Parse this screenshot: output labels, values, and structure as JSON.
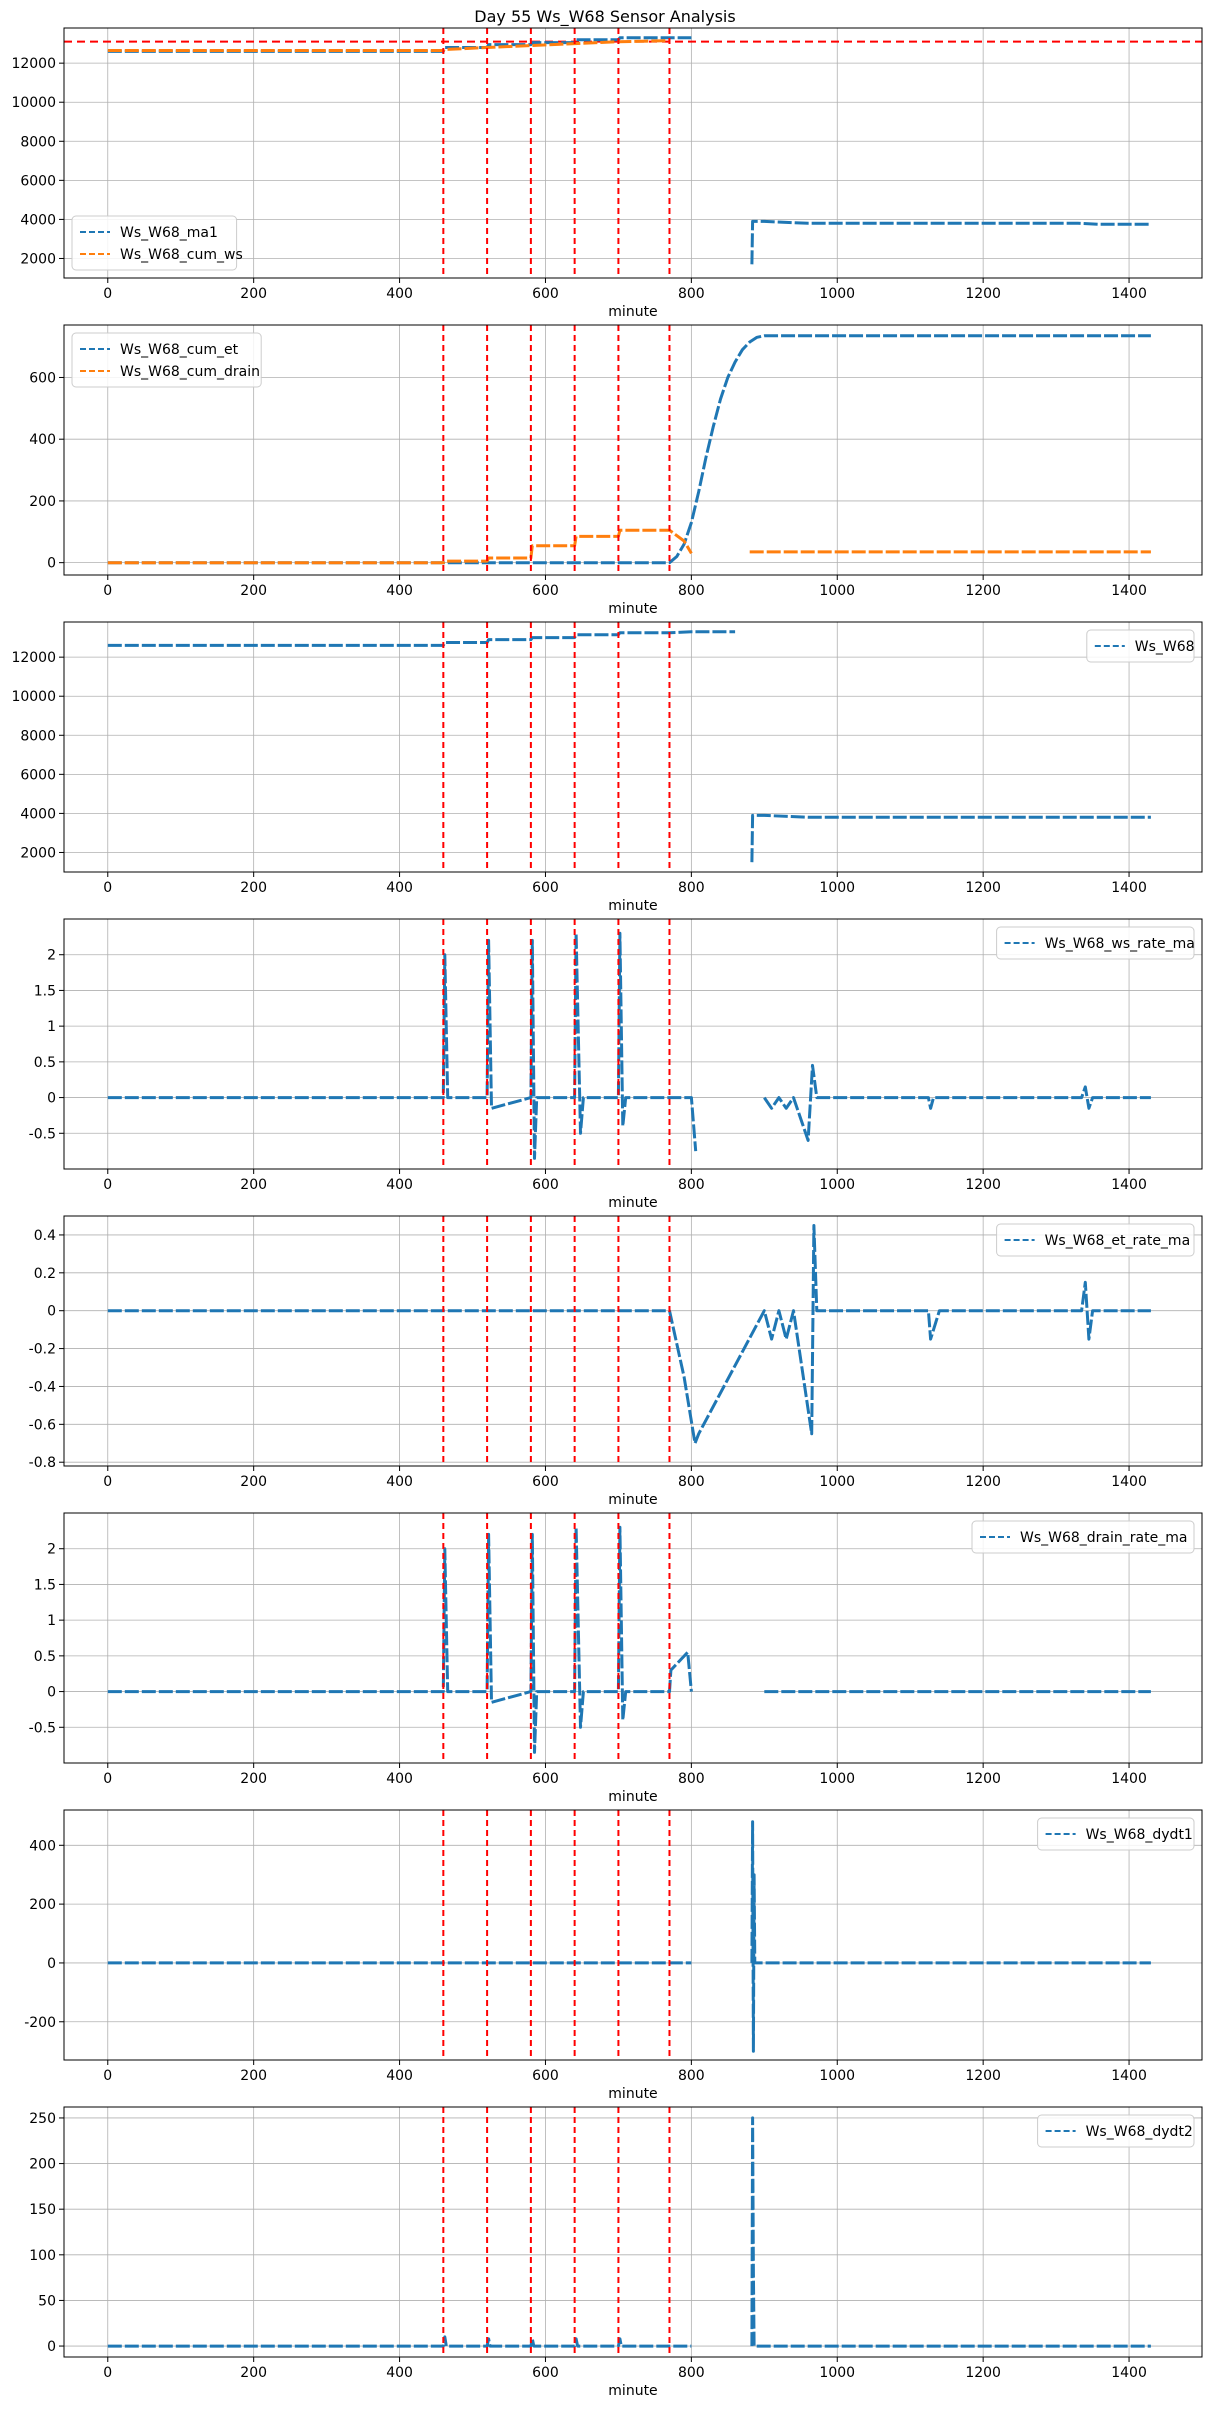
{
  "title": "Day 55 Ws_W68 Sensor Analysis",
  "colors": {
    "c0": "#1f77b4",
    "c1": "#ff7f0e",
    "event": "#ff0000",
    "grid": "#b0b0b0"
  },
  "chart_data": [
    {
      "type": "line",
      "xlabel": "minute",
      "xlim": [
        -60,
        1500
      ],
      "xticks": [
        0,
        200,
        400,
        600,
        800,
        1000,
        1200,
        1400
      ],
      "ylim": [
        1000,
        13800
      ],
      "yticks": [
        2000,
        4000,
        6000,
        8000,
        10000,
        12000
      ],
      "legend_loc": "lower-left",
      "event_lines": [
        460,
        520,
        580,
        640,
        700,
        770
      ],
      "hlines": [
        13100
      ],
      "series": [
        {
          "name": "Ws_W68_ma1",
          "color": "#1f77b4",
          "points": [
            [
              0,
              12600
            ],
            [
              460,
              12600
            ],
            [
              462,
              12800
            ],
            [
              520,
              12800
            ],
            [
              522,
              12950
            ],
            [
              580,
              12950
            ],
            [
              582,
              13050
            ],
            [
              640,
              13050
            ],
            [
              642,
              13200
            ],
            [
              700,
              13200
            ],
            [
              702,
              13300
            ],
            [
              770,
              13300
            ],
            [
              800,
              13300
            ],
            [
              null,
              null
            ],
            [
              883,
              1700
            ],
            [
              884,
              3900
            ],
            [
              900,
              3900
            ],
            [
              960,
              3800
            ],
            [
              1330,
              3800
            ],
            [
              1360,
              3750
            ],
            [
              1430,
              3750
            ]
          ]
        },
        {
          "name": "Ws_W68_cum_ws",
          "color": "#ff7f0e",
          "points": [
            [
              0,
              12650
            ],
            [
              460,
              12650
            ],
            [
              462,
              12700
            ],
            [
              520,
              12800
            ],
            [
              580,
              12900
            ],
            [
              640,
              13000
            ],
            [
              700,
              13100
            ],
            [
              770,
              13150
            ]
          ]
        }
      ]
    },
    {
      "type": "line",
      "xlabel": "minute",
      "xlim": [
        -60,
        1500
      ],
      "xticks": [
        0,
        200,
        400,
        600,
        800,
        1000,
        1200,
        1400
      ],
      "ylim": [
        -40,
        770
      ],
      "yticks": [
        0,
        200,
        400,
        600
      ],
      "legend_loc": "upper-left",
      "event_lines": [
        460,
        520,
        580,
        640,
        700,
        770
      ],
      "series": [
        {
          "name": "Ws_W68_cum_et",
          "color": "#1f77b4",
          "points": [
            [
              0,
              0
            ],
            [
              770,
              0
            ],
            [
              780,
              20
            ],
            [
              790,
              60
            ],
            [
              800,
              130
            ],
            [
              810,
              230
            ],
            [
              820,
              340
            ],
            [
              830,
              440
            ],
            [
              840,
              530
            ],
            [
              850,
              600
            ],
            [
              860,
              650
            ],
            [
              870,
              690
            ],
            [
              880,
              715
            ],
            [
              890,
              730
            ],
            [
              900,
              735
            ],
            [
              1430,
              735
            ]
          ]
        },
        {
          "name": "Ws_W68_cum_drain",
          "color": "#ff7f0e",
          "points": [
            [
              0,
              0
            ],
            [
              460,
              0
            ],
            [
              462,
              5
            ],
            [
              520,
              5
            ],
            [
              522,
              15
            ],
            [
              580,
              15
            ],
            [
              582,
              55
            ],
            [
              640,
              55
            ],
            [
              642,
              85
            ],
            [
              700,
              85
            ],
            [
              702,
              105
            ],
            [
              770,
              105
            ],
            [
              790,
              70
            ],
            [
              800,
              30
            ],
            [
              null,
              null
            ],
            [
              880,
              35
            ],
            [
              1430,
              35
            ]
          ]
        }
      ]
    },
    {
      "type": "line",
      "xlabel": "minute",
      "xlim": [
        -60,
        1500
      ],
      "xticks": [
        0,
        200,
        400,
        600,
        800,
        1000,
        1200,
        1400
      ],
      "ylim": [
        1000,
        13800
      ],
      "yticks": [
        2000,
        4000,
        6000,
        8000,
        10000,
        12000
      ],
      "legend_loc": "upper-right",
      "event_lines": [
        460,
        520,
        580,
        640,
        700,
        770
      ],
      "series": [
        {
          "name": "Ws_W68",
          "color": "#1f77b4",
          "points": [
            [
              0,
              12600
            ],
            [
              460,
              12600
            ],
            [
              462,
              12750
            ],
            [
              520,
              12750
            ],
            [
              522,
              12900
            ],
            [
              580,
              12900
            ],
            [
              582,
              13000
            ],
            [
              640,
              13000
            ],
            [
              642,
              13150
            ],
            [
              700,
              13150
            ],
            [
              702,
              13250
            ],
            [
              770,
              13250
            ],
            [
              800,
              13300
            ],
            [
              860,
              13300
            ],
            [
              null,
              null
            ],
            [
              883,
              1500
            ],
            [
              884,
              3900
            ],
            [
              900,
              3900
            ],
            [
              960,
              3800
            ],
            [
              1430,
              3800
            ]
          ]
        }
      ]
    },
    {
      "type": "line",
      "xlabel": "minute",
      "xlim": [
        -60,
        1500
      ],
      "xticks": [
        0,
        200,
        400,
        600,
        800,
        1000,
        1200,
        1400
      ],
      "ylim": [
        -1.0,
        2.5
      ],
      "yticks": [
        -0.5,
        0.0,
        0.5,
        1.0,
        1.5,
        2.0
      ],
      "legend_loc": "upper-right",
      "event_lines": [
        460,
        520,
        580,
        640,
        700,
        770
      ],
      "series": [
        {
          "name": "Ws_W68_ws_rate_ma",
          "color": "#1f77b4",
          "points": [
            [
              0,
              0
            ],
            [
              460,
              0
            ],
            [
              462,
              2.0
            ],
            [
              466,
              0
            ],
            [
              520,
              0
            ],
            [
              522,
              2.2
            ],
            [
              526,
              -0.15
            ],
            [
              580,
              0
            ],
            [
              582,
              2.2
            ],
            [
              585,
              -0.85
            ],
            [
              588,
              0
            ],
            [
              640,
              0
            ],
            [
              642,
              2.3
            ],
            [
              648,
              -0.5
            ],
            [
              652,
              0
            ],
            [
              700,
              0
            ],
            [
              702,
              2.3
            ],
            [
              706,
              -0.4
            ],
            [
              710,
              0
            ],
            [
              770,
              0
            ],
            [
              800,
              0
            ],
            [
              806,
              -0.75
            ],
            [
              null,
              null
            ],
            [
              900,
              0
            ],
            [
              910,
              -0.15
            ],
            [
              920,
              0
            ],
            [
              930,
              -0.15
            ],
            [
              940,
              0
            ],
            [
              960,
              -0.6
            ],
            [
              966,
              0.45
            ],
            [
              972,
              0
            ],
            [
              1125,
              0
            ],
            [
              1128,
              -0.15
            ],
            [
              1132,
              0
            ],
            [
              1335,
              0
            ],
            [
              1340,
              0.15
            ],
            [
              1345,
              -0.15
            ],
            [
              1350,
              0
            ],
            [
              1430,
              0
            ]
          ]
        }
      ]
    },
    {
      "type": "line",
      "xlabel": "minute",
      "xlim": [
        -60,
        1500
      ],
      "xticks": [
        0,
        200,
        400,
        600,
        800,
        1000,
        1200,
        1400
      ],
      "ylim": [
        -0.82,
        0.5
      ],
      "yticks": [
        -0.8,
        -0.6,
        -0.4,
        -0.2,
        0.0,
        0.2,
        0.4
      ],
      "legend_loc": "upper-right",
      "event_lines": [
        460,
        520,
        580,
        640,
        700,
        770
      ],
      "series": [
        {
          "name": "Ws_W68_et_rate_ma",
          "color": "#1f77b4",
          "points": [
            [
              0,
              0
            ],
            [
              770,
              0
            ],
            [
              790,
              -0.35
            ],
            [
              805,
              -0.7
            ],
            [
              810,
              -0.65
            ],
            [
              900,
              0
            ],
            [
              910,
              -0.15
            ],
            [
              920,
              0
            ],
            [
              930,
              -0.15
            ],
            [
              940,
              0
            ],
            [
              965,
              -0.65
            ],
            [
              968,
              0.45
            ],
            [
              972,
              0
            ],
            [
              1125,
              0
            ],
            [
              1128,
              -0.15
            ],
            [
              1140,
              0
            ],
            [
              1335,
              0
            ],
            [
              1340,
              0.15
            ],
            [
              1345,
              -0.15
            ],
            [
              1350,
              0
            ],
            [
              1430,
              0
            ]
          ]
        }
      ]
    },
    {
      "type": "line",
      "xlabel": "minute",
      "xlim": [
        -60,
        1500
      ],
      "xticks": [
        0,
        200,
        400,
        600,
        800,
        1000,
        1200,
        1400
      ],
      "ylim": [
        -1.0,
        2.5
      ],
      "yticks": [
        -0.5,
        0.0,
        0.5,
        1.0,
        1.5,
        2.0
      ],
      "legend_loc": "upper-right",
      "event_lines": [
        460,
        520,
        580,
        640,
        700,
        770
      ],
      "series": [
        {
          "name": "Ws_W68_drain_rate_ma",
          "color": "#1f77b4",
          "points": [
            [
              0,
              0
            ],
            [
              460,
              0
            ],
            [
              462,
              2.0
            ],
            [
              466,
              0
            ],
            [
              520,
              0
            ],
            [
              522,
              2.2
            ],
            [
              526,
              -0.15
            ],
            [
              580,
              0
            ],
            [
              582,
              2.2
            ],
            [
              585,
              -0.85
            ],
            [
              588,
              0
            ],
            [
              640,
              0
            ],
            [
              642,
              2.3
            ],
            [
              648,
              -0.5
            ],
            [
              652,
              0
            ],
            [
              700,
              0
            ],
            [
              702,
              2.3
            ],
            [
              706,
              -0.4
            ],
            [
              710,
              0
            ],
            [
              770,
              0
            ],
            [
              772,
              0.3
            ],
            [
              795,
              0.55
            ],
            [
              800,
              0
            ],
            [
              null,
              null
            ],
            [
              900,
              0
            ],
            [
              1430,
              0
            ]
          ]
        }
      ]
    },
    {
      "type": "line",
      "xlabel": "minute",
      "xlim": [
        -60,
        1500
      ],
      "xticks": [
        0,
        200,
        400,
        600,
        800,
        1000,
        1200,
        1400
      ],
      "ylim": [
        -330,
        520
      ],
      "yticks": [
        -200,
        0,
        200,
        400
      ],
      "legend_loc": "upper-right",
      "event_lines": [
        460,
        520,
        580,
        640,
        700,
        770
      ],
      "series": [
        {
          "name": "Ws_W68_dydt1",
          "color": "#1f77b4",
          "points": [
            [
              0,
              0
            ],
            [
              800,
              0
            ],
            [
              null,
              null
            ],
            [
              883,
              0
            ],
            [
              884,
              480
            ],
            [
              885,
              -300
            ],
            [
              886,
              300
            ],
            [
              887,
              0
            ],
            [
              900,
              0
            ],
            [
              1430,
              0
            ]
          ]
        }
      ]
    },
    {
      "type": "line",
      "xlabel": "minute",
      "xlim": [
        -60,
        1500
      ],
      "xticks": [
        0,
        200,
        400,
        600,
        800,
        1000,
        1200,
        1400
      ],
      "ylim": [
        -12,
        262
      ],
      "yticks": [
        0,
        50,
        100,
        150,
        200,
        250
      ],
      "legend_loc": "upper-right",
      "event_lines": [
        460,
        520,
        580,
        640,
        700,
        770
      ],
      "series": [
        {
          "name": "Ws_W68_dydt2",
          "color": "#1f77b4",
          "points": [
            [
              0,
              0
            ],
            [
              460,
              0
            ],
            [
              462,
              10
            ],
            [
              464,
              0
            ],
            [
              520,
              0
            ],
            [
              522,
              8
            ],
            [
              524,
              0
            ],
            [
              580,
              0
            ],
            [
              582,
              8
            ],
            [
              584,
              0
            ],
            [
              640,
              0
            ],
            [
              642,
              8
            ],
            [
              644,
              0
            ],
            [
              700,
              0
            ],
            [
              702,
              8
            ],
            [
              704,
              0
            ],
            [
              800,
              0
            ],
            [
              null,
              null
            ],
            [
              883,
              0
            ],
            [
              884,
              250
            ],
            [
              885,
              80
            ],
            [
              886,
              0
            ],
            [
              1430,
              0
            ]
          ]
        }
      ]
    }
  ]
}
